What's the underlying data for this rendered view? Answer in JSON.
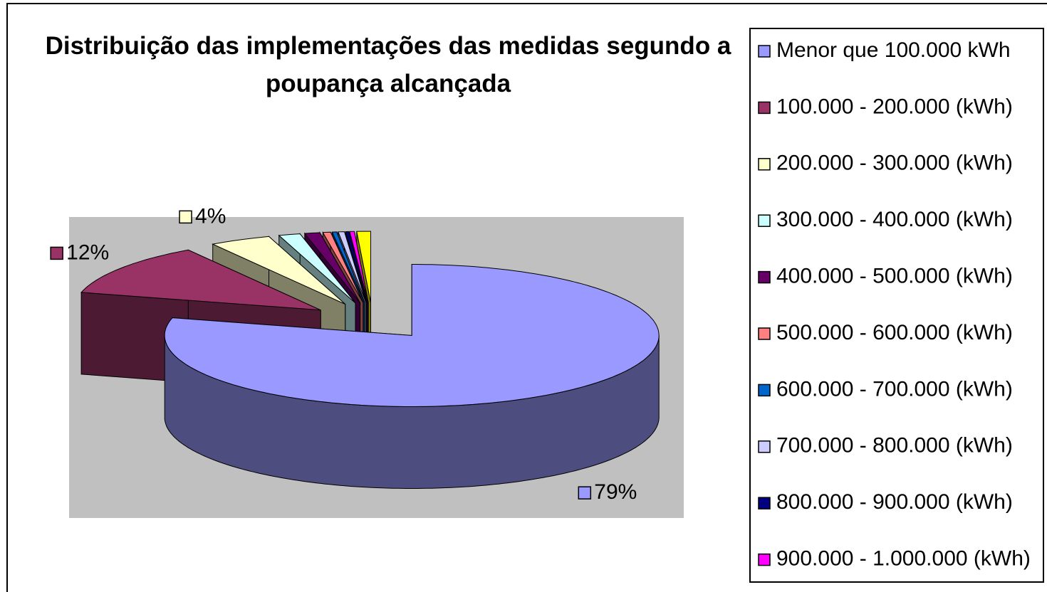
{
  "chart_data": {
    "type": "pie3d",
    "title": "Distribuição das implementações das medidas segundo a poupança alcançada",
    "categories": [
      "Menor que 100.000 kWh",
      "100.000 - 200.000 (kWh)",
      "200.000 - 300.000 (kWh)",
      "300.000 - 400.000 (kWh)",
      "400.000 - 500.000 (kWh)",
      "500.000 - 600.000 (kWh)",
      "600.000 - 700.000 (kWh)",
      "700.000 - 800.000 (kWh)",
      "800.000 - 900.000 (kWh)",
      "900.000 - 1.000.000 (kWh)",
      null
    ],
    "values": [
      79,
      12,
      4,
      1.4,
      1.0,
      0.5,
      0.3,
      0.4,
      0.2,
      0.3,
      0.9
    ],
    "value_labels": [
      "79%",
      "12%",
      "4%",
      null,
      null,
      null,
      null,
      null,
      null,
      null,
      null
    ],
    "colors": [
      "#9999ff",
      "#993366",
      "#ffffcc",
      "#ccffff",
      "#660066",
      "#ff8080",
      "#0066cc",
      "#ccccff",
      "#000080",
      "#ff00ff",
      "#ffff00"
    ]
  }
}
